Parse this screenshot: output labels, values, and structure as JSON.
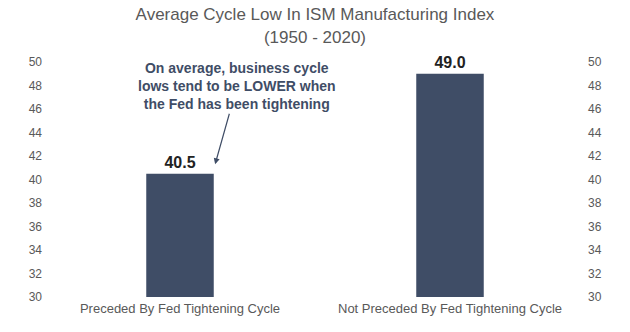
{
  "chart_data": {
    "type": "bar",
    "title": "Average Cycle Low In ISM Manufacturing Index",
    "subtitle": "(1950 - 2020)",
    "categories": [
      "Preceded By Fed Tightening Cycle",
      "Not Preceded By Fed Tightening Cycle"
    ],
    "values": [
      40.5,
      49.0
    ],
    "value_labels": [
      "40.5",
      "49.0"
    ],
    "data_labels": true,
    "color": "#3f4d66",
    "ylim": [
      30,
      50
    ],
    "yticks": [
      30,
      32,
      34,
      36,
      38,
      40,
      42,
      44,
      46,
      48,
      50
    ],
    "y2lim": [
      30,
      50
    ],
    "y2ticks": [
      30,
      32,
      34,
      36,
      38,
      40,
      42,
      44,
      46,
      48,
      50
    ],
    "grid": false,
    "annotations": [
      {
        "text": [
          "On average, business cycle",
          "lows tend to be LOWER when",
          "the Fed has been tightening"
        ],
        "category": "Preceded By Fed Tightening Cycle"
      }
    ]
  }
}
